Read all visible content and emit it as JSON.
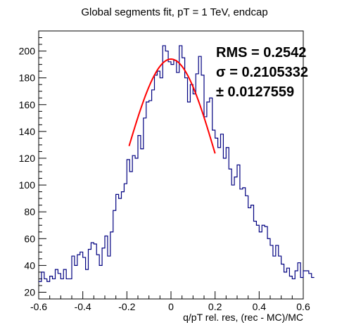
{
  "chart_data": {
    "type": "histogram",
    "title": "Global segments fit, pT = 1 TeV, endcap",
    "xlabel": "q/pT rel. res, (rec - MC)/MC",
    "ylabel": "",
    "xlim": [
      -0.6,
      0.6
    ],
    "ylim": [
      15,
      215
    ],
    "x_ticks": [
      -0.6,
      -0.4,
      -0.2,
      0,
      0.2,
      0.4,
      0.6
    ],
    "x_tick_labels": [
      "-0.6",
      "-0.4",
      "-0.2",
      "0",
      "0.2",
      "0.4",
      "0.6"
    ],
    "y_ticks": [
      20,
      40,
      60,
      80,
      100,
      120,
      140,
      160,
      180,
      200
    ],
    "y_tick_labels": [
      "20",
      "40",
      "60",
      "80",
      "100",
      "120",
      "140",
      "160",
      "180",
      "200"
    ],
    "bin_width": 0.0125,
    "bin_edges_start": -0.6,
    "histogram_values": [
      28,
      35,
      30,
      28,
      32,
      30,
      37,
      34,
      30,
      37,
      30,
      30,
      47,
      40,
      48,
      50,
      46,
      37,
      52,
      57,
      56,
      48,
      40,
      53,
      62,
      47,
      65,
      81,
      93,
      90,
      95,
      101,
      119,
      110,
      122,
      120,
      137,
      127,
      150,
      162,
      163,
      171,
      182,
      185,
      180,
      204,
      200,
      192,
      190,
      193,
      184,
      204,
      195,
      180,
      162,
      175,
      168,
      183,
      196,
      182,
      151,
      162,
      165,
      141,
      135,
      128,
      138,
      120,
      128,
      112,
      100,
      106,
      115,
      97,
      98,
      92,
      83,
      85,
      73,
      70,
      65,
      70,
      69,
      60,
      55,
      47,
      55,
      47,
      41,
      35,
      38,
      32,
      30,
      36,
      42,
      31,
      36,
      36,
      34,
      31
    ],
    "line_color": "#000080",
    "fit": {
      "type": "gaussian",
      "mean": 0.0,
      "sigma": 0.2105332,
      "amplitude": 194,
      "x_range": [
        -0.19,
        0.2
      ],
      "color": "#ff0000"
    },
    "stats": {
      "rms_text": "RMS = 0.2542",
      "sigma_text": "σ = 0.2105332",
      "error_text": "± 0.0127559"
    },
    "grid": false,
    "legend": "none"
  }
}
